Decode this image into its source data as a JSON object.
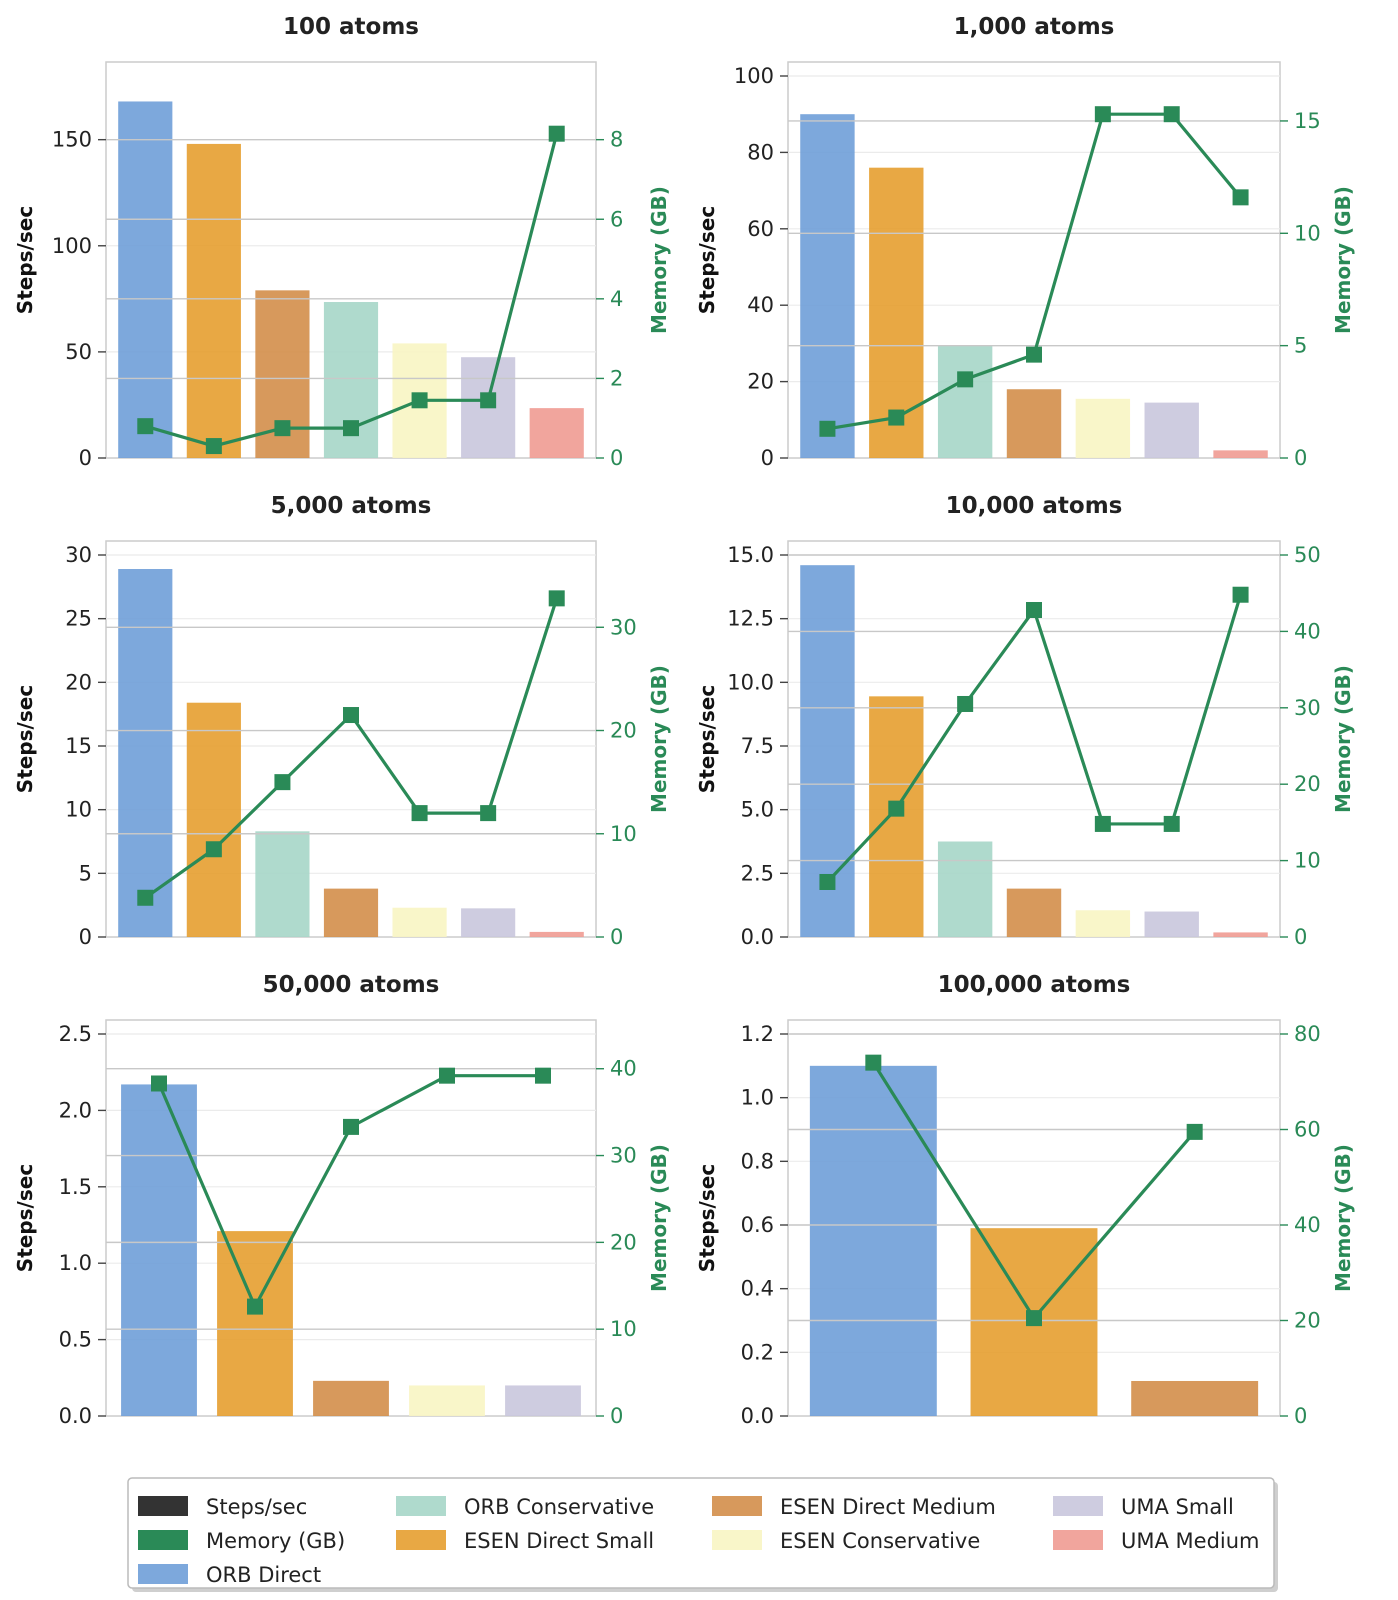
{
  "colors": {
    "memory_line": "#2a8a57",
    "steps_swatch": "#333333",
    "ORB Direct": "#6f9fd8",
    "ORB Conservative": "#a6d6c8",
    "ESEN Direct Small": "#e69f30",
    "ESEN Direct Medium": "#d38e4a",
    "ESEN Conservative": "#f8f5c3",
    "UMA Small": "#c9c6dd",
    "UMA Medium": "#ef9b92"
  },
  "legend": [
    {
      "label": "Steps/sec",
      "color_key": "steps_swatch"
    },
    {
      "label": "Memory (GB)",
      "color_key": "memory_line"
    },
    {
      "label": "ORB Direct",
      "color_key": "ORB Direct"
    },
    {
      "label": "ORB Conservative",
      "color_key": "ORB Conservative"
    },
    {
      "label": "ESEN Direct Small",
      "color_key": "ESEN Direct Small"
    },
    {
      "label": "ESEN Direct Medium",
      "color_key": "ESEN Direct Medium"
    },
    {
      "label": "ESEN Conservative",
      "color_key": "ESEN Conservative"
    },
    {
      "label": "UMA Small",
      "color_key": "UMA Small"
    },
    {
      "label": "UMA Medium",
      "color_key": "UMA Medium"
    }
  ],
  "chart_data": [
    {
      "type": "bar",
      "title": "100 atoms",
      "ylabel": "Steps/sec",
      "y2label": "Memory (GB)",
      "ylim": [
        0,
        180
      ],
      "yticks": [
        0,
        50,
        100,
        150
      ],
      "y2lim": [
        0,
        9.6
      ],
      "y2ticks": [
        0,
        2,
        4,
        6,
        8
      ],
      "models": [
        "ORB Direct",
        "ESEN Direct Small",
        "ESEN Direct Medium",
        "ORB Conservative",
        "ESEN Conservative",
        "UMA Small",
        "UMA Medium"
      ],
      "steps_per_sec": [
        168,
        148,
        79,
        73.5,
        54,
        47.5,
        23.5
      ],
      "memory_gb": [
        0.8,
        0.3,
        0.75,
        0.75,
        1.45,
        1.45,
        8.15
      ]
    },
    {
      "type": "bar",
      "title": "1,000 atoms",
      "ylabel": "Steps/sec",
      "y2label": "Memory (GB)",
      "ylim": [
        0,
        100
      ],
      "yticks": [
        0,
        20,
        40,
        60,
        80,
        100
      ],
      "y2lim": [
        0,
        17
      ],
      "y2ticks": [
        0,
        5,
        10,
        15
      ],
      "models": [
        "ORB Direct",
        "ESEN Direct Small",
        "ORB Conservative",
        "ESEN Direct Medium",
        "ESEN Conservative",
        "UMA Small",
        "UMA Medium"
      ],
      "steps_per_sec": [
        90,
        76,
        29.5,
        18,
        15.5,
        14.5,
        2
      ],
      "memory_gb": [
        1.3,
        1.8,
        3.5,
        4.6,
        15.3,
        15.3,
        11.6
      ]
    },
    {
      "type": "bar",
      "title": "5,000 atoms",
      "ylabel": "Steps/sec",
      "y2label": "Memory (GB)",
      "ylim": [
        0,
        30
      ],
      "yticks": [
        0,
        5,
        10,
        15,
        20,
        25,
        30
      ],
      "y2lim": [
        0,
        37
      ],
      "y2ticks": [
        0,
        10,
        20,
        30
      ],
      "models": [
        "ORB Direct",
        "ESEN Direct Small",
        "ORB Conservative",
        "ESEN Direct Medium",
        "ESEN Conservative",
        "UMA Small",
        "UMA Medium"
      ],
      "steps_per_sec": [
        28.9,
        18.4,
        8.3,
        3.8,
        2.3,
        2.25,
        0.4
      ],
      "memory_gb": [
        3.8,
        8.5,
        15,
        21.5,
        12,
        12,
        32.8
      ]
    },
    {
      "type": "bar",
      "title": "10,000 atoms",
      "ylabel": "Steps/sec",
      "y2label": "Memory (GB)",
      "ylim": [
        0,
        15
      ],
      "yticks": [
        0.0,
        2.5,
        5.0,
        7.5,
        10.0,
        12.5,
        15.0
      ],
      "y2lim": [
        0,
        50
      ],
      "y2ticks": [
        0,
        10,
        20,
        30,
        40,
        50
      ],
      "models": [
        "ORB Direct",
        "ESEN Direct Small",
        "ORB Conservative",
        "ESEN Direct Medium",
        "ESEN Conservative",
        "UMA Small",
        "UMA Medium"
      ],
      "steps_per_sec": [
        14.6,
        9.45,
        3.75,
        1.9,
        1.05,
        1.0,
        0.18
      ],
      "memory_gb": [
        7.2,
        16.8,
        30.5,
        42.8,
        14.8,
        14.8,
        44.8
      ]
    },
    {
      "type": "bar",
      "title": "50,000 atoms",
      "ylabel": "Steps/sec",
      "y2label": "Memory (GB)",
      "ylim": [
        0,
        2.5
      ],
      "yticks": [
        0.0,
        0.5,
        1.0,
        1.5,
        2.0,
        2.5
      ],
      "y2lim": [
        0,
        44
      ],
      "y2ticks": [
        0,
        10,
        20,
        30,
        40
      ],
      "models": [
        "ORB Direct",
        "ESEN Direct Small",
        "ESEN Direct Medium",
        "ESEN Conservative",
        "UMA Small"
      ],
      "steps_per_sec": [
        2.17,
        1.21,
        0.23,
        0.2,
        0.2
      ],
      "memory_gb": [
        38.3,
        12.6,
        33.3,
        39.2,
        39.2
      ]
    },
    {
      "type": "bar",
      "title": "100,000 atoms",
      "ylabel": "Steps/sec",
      "y2label": "Memory (GB)",
      "ylim": [
        0,
        1.2
      ],
      "yticks": [
        0.0,
        0.2,
        0.4,
        0.6,
        0.8,
        1.0,
        1.2
      ],
      "y2lim": [
        0,
        80
      ],
      "y2ticks": [
        0,
        20,
        40,
        60,
        80
      ],
      "models": [
        "ORB Direct",
        "ESEN Direct Small",
        "ESEN Direct Medium"
      ],
      "steps_per_sec": [
        1.1,
        0.59,
        0.11
      ],
      "memory_gb": [
        74,
        20.5,
        59.5
      ]
    }
  ]
}
